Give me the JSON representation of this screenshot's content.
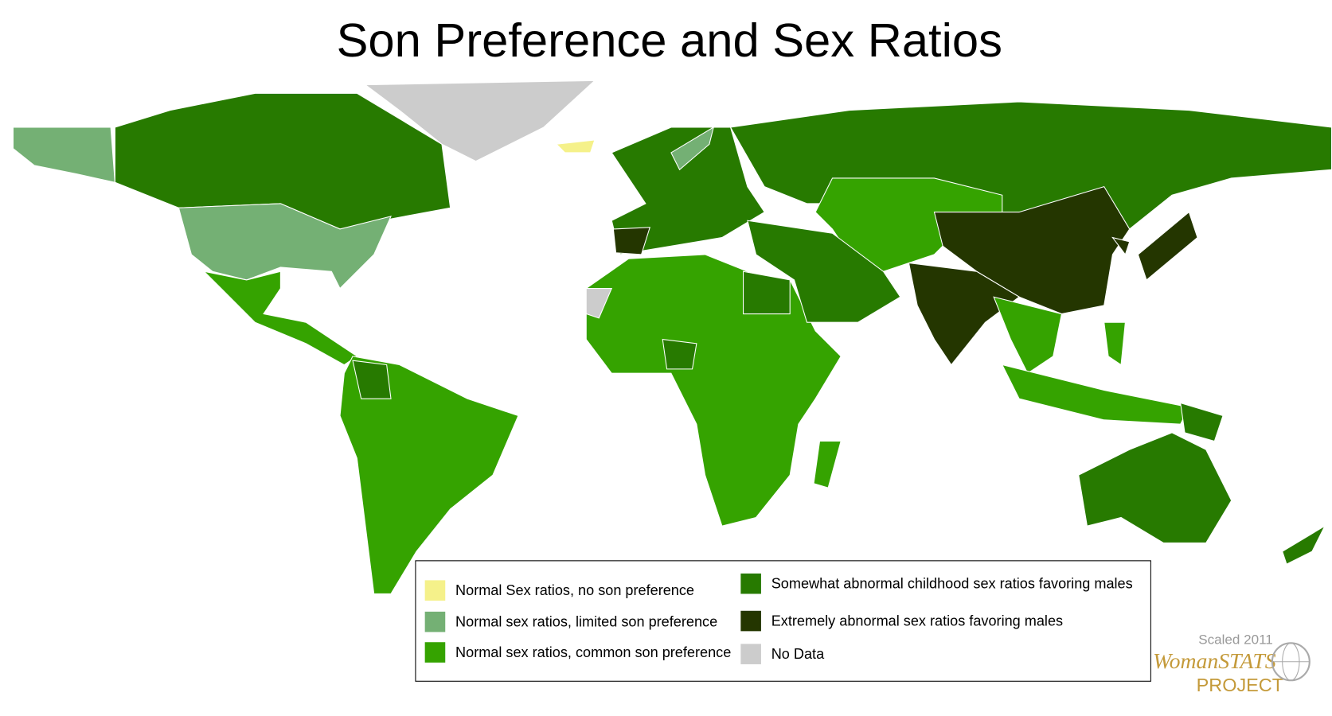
{
  "title": "Son Preference and Sex Ratios",
  "legend": {
    "items": [
      {
        "label": "Normal Sex ratios, no son preference",
        "color": "#f5f18a"
      },
      {
        "label": "Normal sex ratios, limited son preference",
        "color": "#74b074"
      },
      {
        "label": "Normal sex ratios, common son preference",
        "color": "#35a300"
      },
      {
        "label": "Somewhat abnormal childhood sex ratios favoring males",
        "color": "#277a00"
      },
      {
        "label": "Extremely abnormal sex ratios favoring males",
        "color": "#243600"
      },
      {
        "label": "No Data",
        "color": "#cccccc"
      }
    ]
  },
  "logo": {
    "caption": "Scaled 2011",
    "name": "WomanSTATS",
    "subtitle": "PROJECT"
  }
}
